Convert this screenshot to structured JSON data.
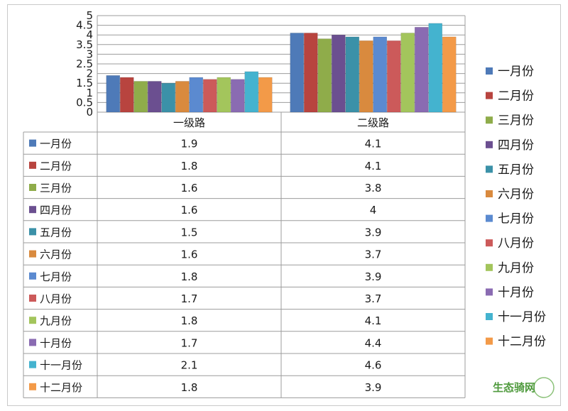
{
  "chart_data": {
    "type": "bar",
    "categories": [
      "一级路",
      "二级路"
    ],
    "series": [
      {
        "name": "一月份",
        "color": "#4e7ab8",
        "values": [
          1.9,
          4.1
        ]
      },
      {
        "name": "二月份",
        "color": "#b8443f",
        "values": [
          1.8,
          4.1
        ]
      },
      {
        "name": "三月份",
        "color": "#8fac4a",
        "values": [
          1.6,
          3.8
        ]
      },
      {
        "name": "四月份",
        "color": "#6b4f90",
        "values": [
          1.6,
          4
        ]
      },
      {
        "name": "五月份",
        "color": "#3b91a8",
        "values": [
          1.5,
          3.9
        ]
      },
      {
        "name": "六月份",
        "color": "#d98a3e",
        "values": [
          1.6,
          3.7
        ]
      },
      {
        "name": "七月份",
        "color": "#5b8ad0",
        "values": [
          1.8,
          3.9
        ]
      },
      {
        "name": "八月份",
        "color": "#cc5a5a",
        "values": [
          1.7,
          3.7
        ]
      },
      {
        "name": "九月份",
        "color": "#a3c55c",
        "values": [
          1.8,
          4.1
        ]
      },
      {
        "name": "十月份",
        "color": "#8a6bb2",
        "values": [
          1.7,
          4.4
        ]
      },
      {
        "name": "十一月份",
        "color": "#44b3cf",
        "values": [
          2.1,
          4.6
        ]
      },
      {
        "name": "十二月份",
        "color": "#f39a48",
        "values": [
          1.8,
          3.9
        ]
      }
    ],
    "ylim": [
      0,
      5
    ],
    "yticks": [
      "0",
      "0.5",
      "1",
      "1.5",
      "2",
      "2.5",
      "3",
      "3.5",
      "4",
      "4.5",
      "5"
    ],
    "grid": true,
    "legend": "right",
    "data_table": true
  },
  "watermark": {
    "text": "生态骑网"
  }
}
